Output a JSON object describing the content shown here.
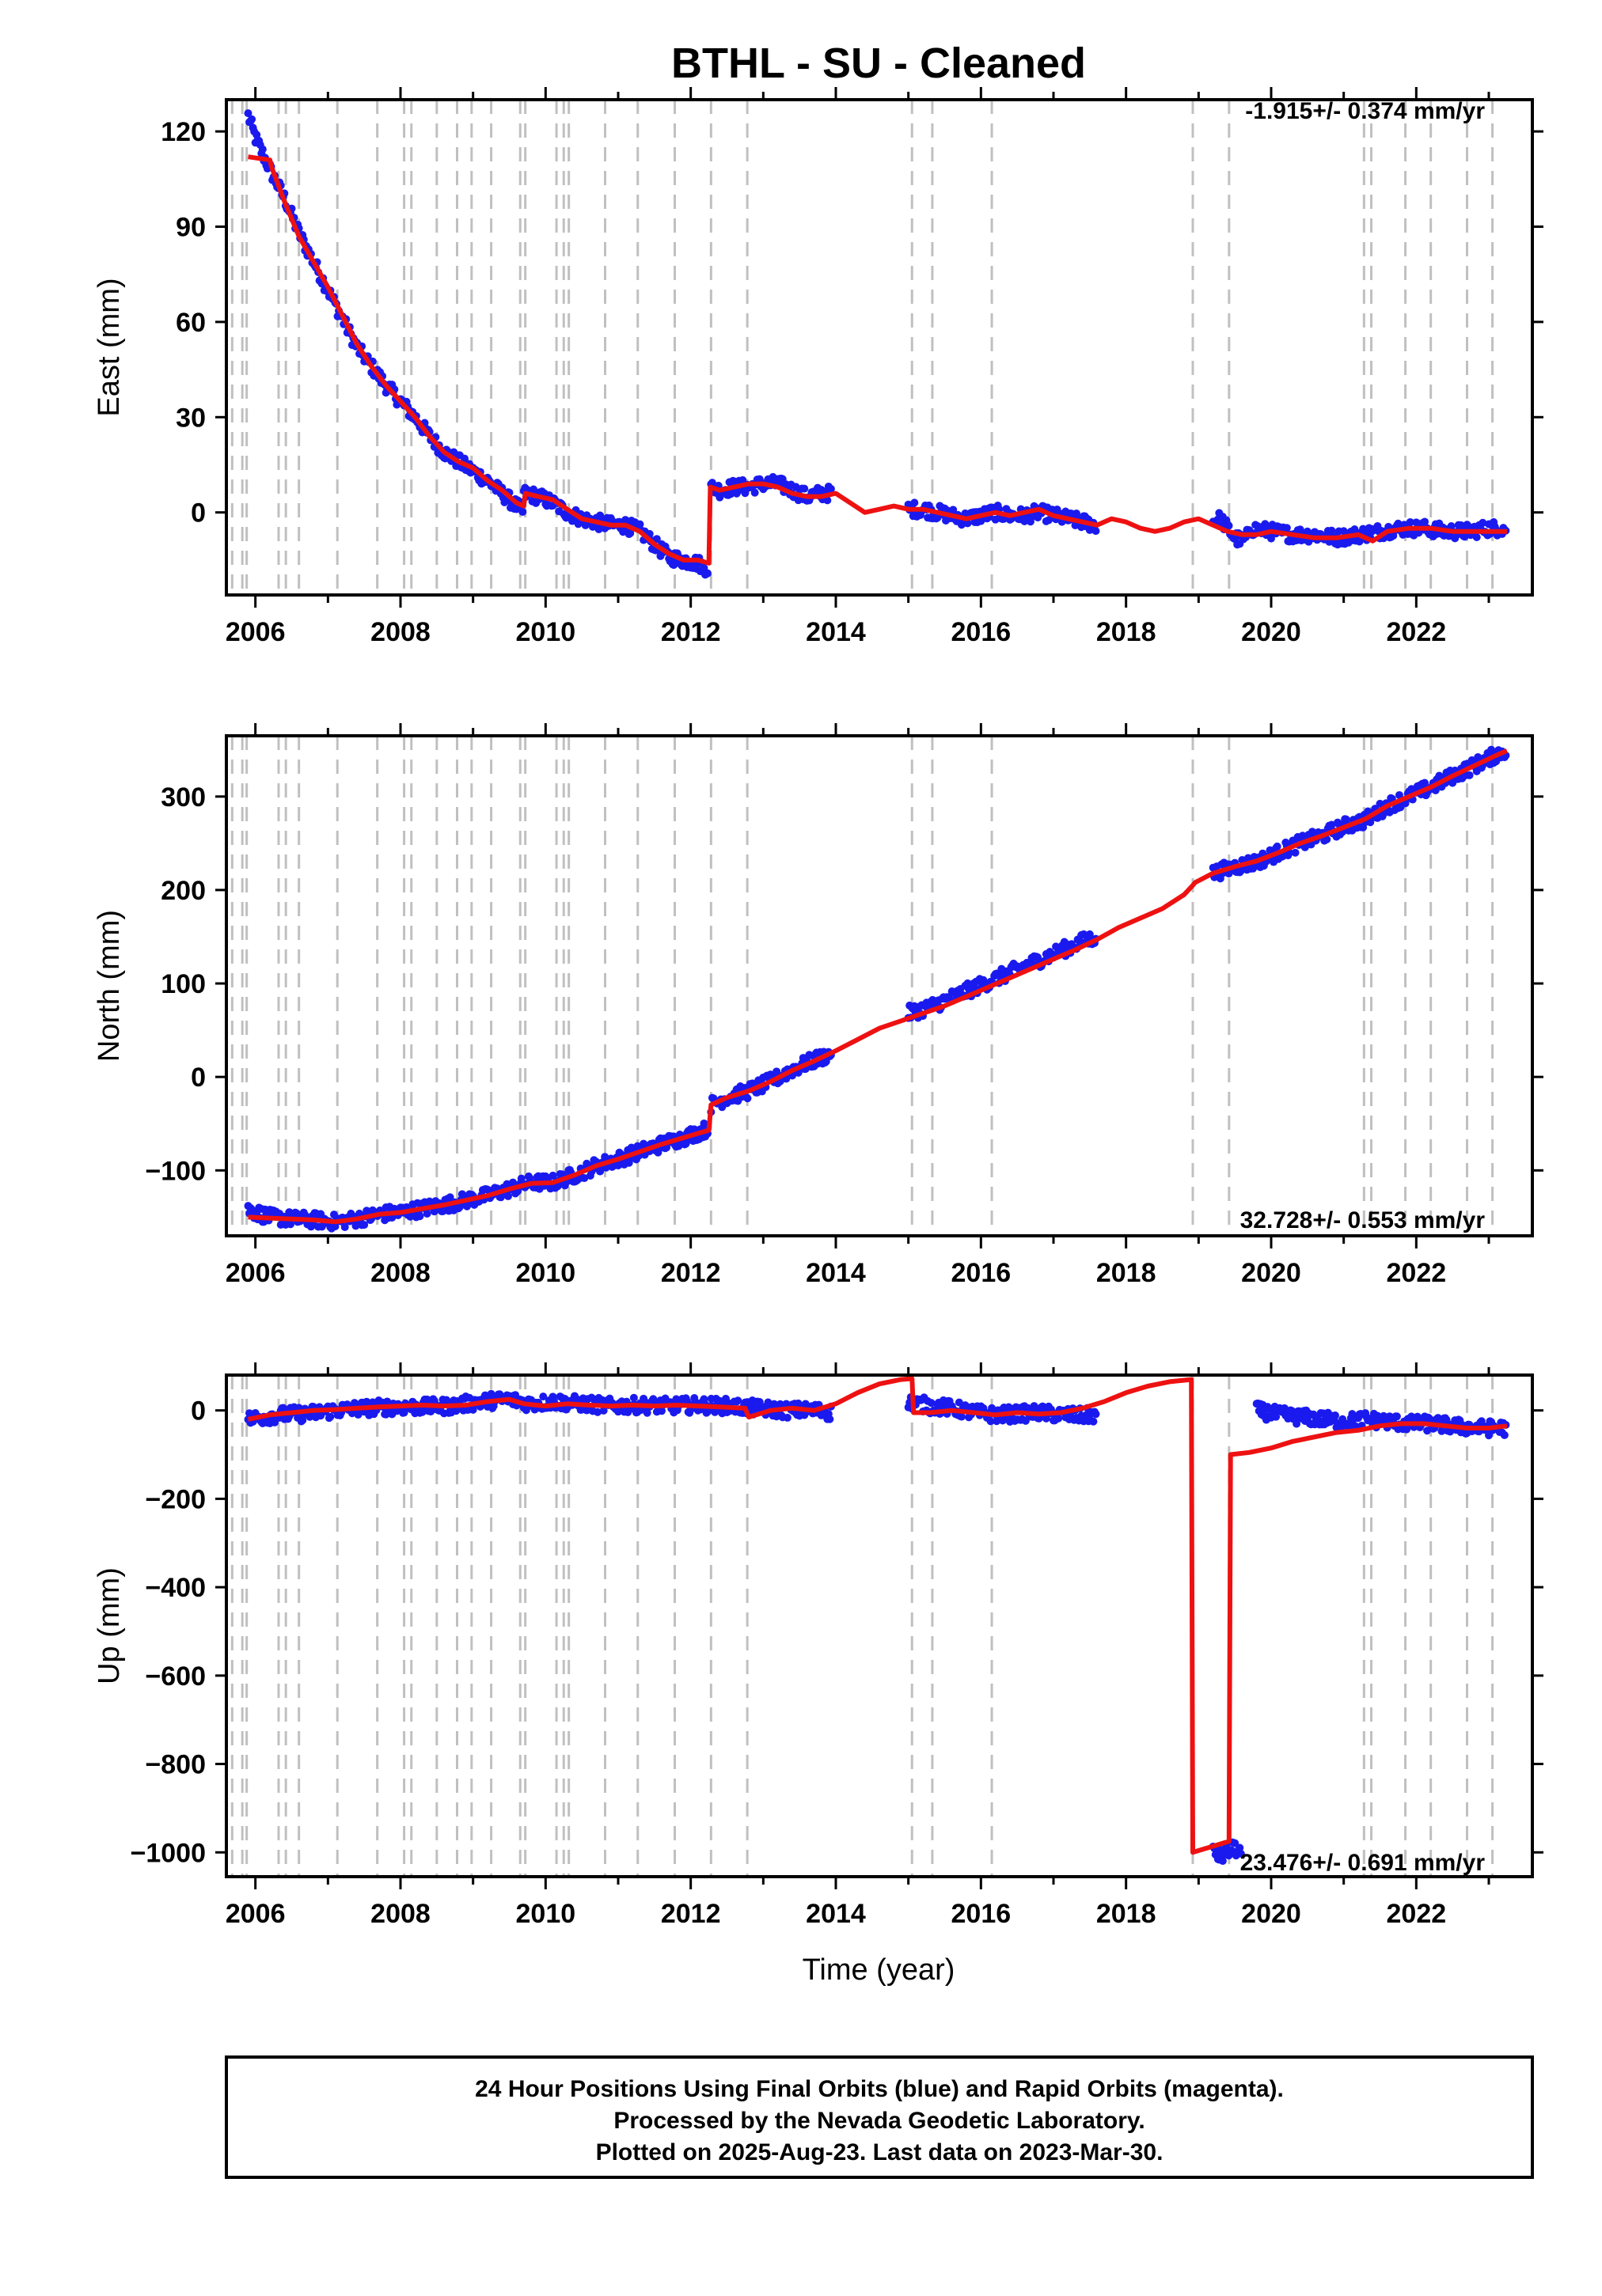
{
  "chart_data": {
    "type": "scatter",
    "title": "BTHL  - SU - Cleaned",
    "xlabel": "Time (year)",
    "xlim": [
      2005.6,
      2023.6
    ],
    "xticks": [
      2006,
      2008,
      2010,
      2012,
      2014,
      2016,
      2018,
      2020,
      2022
    ],
    "dashed_lines_x": [
      2005.68,
      2005.82,
      2005.88,
      2006.32,
      2006.42,
      2006.6,
      2007.13,
      2007.68,
      2008.05,
      2008.15,
      2008.5,
      2008.78,
      2008.98,
      2009.25,
      2009.65,
      2009.72,
      2010.15,
      2010.25,
      2010.32,
      2010.82,
      2011.27,
      2011.78,
      2012.28,
      2012.78,
      2015.05,
      2015.33,
      2016.15,
      2018.92,
      2019.42,
      2021.28,
      2021.38,
      2021.85,
      2022.2,
      2022.7,
      2023.05
    ],
    "panels": [
      {
        "ylabel": "East (mm)",
        "ylim": [
          -26,
          130
        ],
        "yticks": [
          0,
          30,
          60,
          90,
          120
        ],
        "rate_label": "-1.915+/- 0.374 mm/yr",
        "segments": [
          {
            "x": [
              2005.9,
              2006.0,
              2006.2,
              2006.4,
              2006.6,
              2006.8,
              2007.0,
              2007.2,
              2007.4,
              2007.6,
              2007.8,
              2008.0,
              2008.2,
              2008.4,
              2008.6,
              2008.8,
              2009.0,
              2009.2,
              2009.4,
              2009.6,
              2009.7
            ],
            "y": [
              125,
              118,
              108,
              99,
              88,
              79,
              70,
              61,
              52,
              46,
              40,
              35,
              30,
              24,
              19,
              16,
              13,
              10,
              6,
              2,
              0
            ]
          },
          {
            "x": [
              2009.7,
              2009.9,
              2010.1,
              2010.3,
              2010.5,
              2010.7,
              2010.9,
              2011.1,
              2011.3,
              2011.5,
              2011.7,
              2011.9,
              2012.1,
              2012.25
            ],
            "y": [
              6,
              5,
              3,
              0,
              -2,
              -3,
              -4,
              -4,
              -6,
              -10,
              -14,
              -15,
              -16,
              -18
            ]
          },
          {
            "x": [
              2012.28,
              2012.4,
              2012.6,
              2012.8,
              2013.0,
              2013.2,
              2013.4,
              2013.6,
              2013.8,
              2013.95
            ],
            "y": [
              8,
              7,
              8,
              8,
              9,
              9,
              7,
              5,
              6,
              6
            ]
          },
          {
            "x": [
              2015.0,
              2015.2,
              2015.4,
              2015.6,
              2015.8,
              2016.0,
              2016.2,
              2016.4,
              2016.6,
              2016.8,
              2017.0,
              2017.2,
              2017.4,
              2017.6
            ],
            "y": [
              1,
              1,
              0,
              -1,
              -2,
              -1,
              0,
              -1,
              -1,
              0,
              -1,
              -2,
              -3,
              -4
            ]
          },
          {
            "x": [
              2019.2,
              2019.3,
              2019.4,
              2019.5,
              2019.6,
              2019.7
            ],
            "y": [
              -3,
              -2,
              -5,
              -8,
              -9,
              -7
            ]
          },
          {
            "x": [
              2019.7,
              2020.0,
              2020.3,
              2020.6,
              2020.9,
              2021.2,
              2021.5,
              2021.8,
              2022.1,
              2022.4,
              2022.7,
              2023.0,
              2023.25
            ],
            "y": [
              -5,
              -6,
              -7,
              -7,
              -8,
              -7,
              -6,
              -5,
              -5,
              -6,
              -6,
              -5,
              -5
            ]
          }
        ],
        "fit": {
          "x": [
            2005.9,
            2006.2,
            2006.22,
            2006.4,
            2006.6,
            2006.8,
            2007.0,
            2007.2,
            2007.4,
            2007.6,
            2007.8,
            2008.0,
            2008.2,
            2008.4,
            2008.6,
            2008.8,
            2009.0,
            2009.2,
            2009.4,
            2009.6,
            2009.7,
            2009.72,
            2009.9,
            2010.1,
            2010.3,
            2010.5,
            2010.7,
            2010.9,
            2011.1,
            2011.3,
            2011.5,
            2011.7,
            2011.9,
            2012.1,
            2012.25,
            2012.27,
            2012.4,
            2012.6,
            2012.8,
            2013.0,
            2013.2,
            2013.4,
            2013.6,
            2013.8,
            2014.0,
            2014.2,
            2014.4,
            2014.6,
            2014.8,
            2015.0,
            2015.2,
            2015.4,
            2015.6,
            2015.8,
            2016.0,
            2016.2,
            2016.4,
            2016.6,
            2016.8,
            2017.0,
            2017.2,
            2017.4,
            2017.6,
            2017.8,
            2018.0,
            2018.2,
            2018.4,
            2018.6,
            2018.8,
            2019.0,
            2019.2,
            2019.4,
            2019.6,
            2019.8,
            2020.0,
            2020.3,
            2020.6,
            2020.9,
            2021.2,
            2021.4,
            2021.6,
            2021.9,
            2022.2,
            2022.5,
            2022.8,
            2023.0,
            2023.25
          ],
          "y": [
            112,
            111,
            109,
            98,
            87,
            79,
            71,
            62,
            53,
            46,
            40,
            35,
            30,
            24,
            19,
            16,
            14,
            10,
            7,
            3,
            2,
            6,
            5,
            4,
            1,
            -2,
            -3,
            -4,
            -4,
            -6,
            -10,
            -13,
            -15,
            -15,
            -16,
            8,
            7,
            8,
            9,
            9,
            8,
            6,
            5,
            5,
            6,
            3,
            0,
            1,
            2,
            1,
            1,
            0,
            -1,
            -2,
            -1,
            0,
            -1,
            0,
            1,
            -1,
            -2,
            -3,
            -4,
            -2,
            -3,
            -5,
            -6,
            -5,
            -3,
            -2,
            -4,
            -6,
            -7,
            -7,
            -6,
            -7,
            -8,
            -8,
            -7,
            -9,
            -6,
            -5,
            -5,
            -6,
            -6,
            -6,
            -6
          ]
        }
      },
      {
        "ylabel": "North (mm)",
        "ylim": [
          -170,
          365
        ],
        "yticks": [
          -100,
          0,
          100,
          200,
          300
        ],
        "rate_label": "32.728+/- 0.553 mm/yr",
        "segments": [
          {
            "x": [
              2005.9,
              2006.2,
              2006.5,
              2006.8,
              2007.1,
              2007.4,
              2007.7,
              2008.0,
              2008.3,
              2008.6,
              2008.9,
              2009.2,
              2009.5,
              2009.8,
              2010.1,
              2010.4,
              2010.7,
              2011.0,
              2011.3,
              2011.6,
              2011.9,
              2012.25
            ],
            "y": [
              -142,
              -150,
              -152,
              -153,
              -155,
              -152,
              -147,
              -145,
              -141,
              -137,
              -132,
              -127,
              -120,
              -113,
              -113,
              -105,
              -95,
              -88,
              -80,
              -72,
              -65,
              -55
            ]
          },
          {
            "x": [
              2012.28,
              2012.5,
              2012.8,
              2013.1,
              2013.4,
              2013.7,
              2013.95
            ],
            "y": [
              -30,
              -22,
              -15,
              -5,
              8,
              18,
              25
            ]
          },
          {
            "x": [
              2015.0,
              2015.3,
              2015.6,
              2015.9,
              2016.2,
              2016.5,
              2016.8,
              2017.1,
              2017.4,
              2017.6
            ],
            "y": [
              68,
              75,
              85,
              95,
              105,
              115,
              125,
              135,
              145,
              150
            ]
          },
          {
            "x": [
              2019.2,
              2019.5,
              2019.8,
              2020.1,
              2020.4,
              2020.7,
              2021.0,
              2021.3,
              2021.6,
              2021.9,
              2022.2,
              2022.5,
              2022.8,
              2023.1,
              2023.25
            ],
            "y": [
              218,
              225,
              230,
              240,
              250,
              258,
              268,
              275,
              290,
              300,
              310,
              322,
              333,
              345,
              350
            ]
          }
        ],
        "fit": {
          "x": [
            2005.9,
            2006.2,
            2006.5,
            2006.8,
            2007.1,
            2007.4,
            2007.7,
            2008.0,
            2008.3,
            2008.6,
            2008.9,
            2009.2,
            2009.5,
            2009.8,
            2010.1,
            2010.4,
            2010.7,
            2011.0,
            2011.3,
            2011.6,
            2011.9,
            2012.25,
            2012.28,
            2012.5,
            2012.8,
            2013.1,
            2013.4,
            2013.7,
            2014.0,
            2014.3,
            2014.6,
            2014.9,
            2015.2,
            2015.5,
            2015.8,
            2016.1,
            2016.4,
            2016.7,
            2017.0,
            2017.3,
            2017.6,
            2017.9,
            2018.2,
            2018.5,
            2018.8,
            2018.92,
            2018.95,
            2019.2,
            2019.5,
            2019.8,
            2020.1,
            2020.4,
            2020.7,
            2021.0,
            2021.3,
            2021.6,
            2021.9,
            2022.2,
            2022.5,
            2022.8,
            2023.1,
            2023.25
          ],
          "y": [
            -150,
            -151,
            -152,
            -153,
            -155,
            -152,
            -147,
            -145,
            -141,
            -137,
            -132,
            -127,
            -120,
            -114,
            -113,
            -105,
            -95,
            -88,
            -80,
            -72,
            -65,
            -57,
            -30,
            -22,
            -15,
            -5,
            7,
            17,
            28,
            40,
            52,
            60,
            68,
            76,
            86,
            96,
            106,
            116,
            126,
            136,
            147,
            160,
            170,
            180,
            195,
            205,
            208,
            218,
            225,
            231,
            240,
            250,
            258,
            267,
            276,
            290,
            300,
            310,
            322,
            333,
            344,
            349
          ]
        }
      },
      {
        "ylabel": "Up (mm)",
        "ylim": [
          -1055,
          80
        ],
        "yticks": [
          -1000,
          -800,
          -600,
          -400,
          -200,
          0
        ],
        "rate_label": "23.476+/- 0.691 mm/yr",
        "segments": [
          {
            "x": [
              2005.9,
              2006.3,
              2006.7,
              2007.1,
              2007.5,
              2007.9,
              2008.3,
              2008.7,
              2009.1,
              2009.5,
              2009.8,
              2010.1,
              2010.5,
              2010.9,
              2011.3,
              2011.7,
              2012.1,
              2012.5,
              2012.9,
              2013.3,
              2013.7,
              2013.95
            ],
            "y": [
              -20,
              -10,
              -8,
              0,
              5,
              8,
              8,
              10,
              20,
              25,
              15,
              20,
              15,
              10,
              12,
              10,
              12,
              10,
              5,
              0,
              0,
              -5
            ]
          },
          {
            "x": [
              2015.0,
              2015.3,
              2015.6,
              2015.9,
              2016.2,
              2016.5,
              2016.8,
              2017.1,
              2017.4,
              2017.6
            ],
            "y": [
              20,
              10,
              5,
              -5,
              -10,
              -8,
              -5,
              -10,
              -12,
              -10
            ]
          },
          {
            "x": [
              2019.2,
              2019.3,
              2019.4,
              2019.5,
              2019.6
            ],
            "y": [
              -1000,
              -1010,
              -1000,
              -990,
              -1005
            ]
          },
          {
            "x": [
              2019.8,
              2020.1,
              2020.4,
              2020.7,
              2021.0,
              2021.3,
              2021.6,
              2021.9,
              2022.2,
              2022.5,
              2022.8,
              2023.1,
              2023.25
            ],
            "y": [
              0,
              -10,
              -15,
              -20,
              -25,
              -20,
              -25,
              -30,
              -30,
              -35,
              -40,
              -40,
              -40
            ]
          }
        ],
        "fit": {
          "x": [
            2005.9,
            2006.2,
            2006.5,
            2006.8,
            2007.1,
            2007.4,
            2007.7,
            2008.0,
            2008.3,
            2008.6,
            2008.9,
            2009.2,
            2009.5,
            2009.7,
            2010.0,
            2010.3,
            2010.6,
            2010.9,
            2011.2,
            2011.5,
            2011.8,
            2012.1,
            2012.4,
            2012.75,
            2012.8,
            2013.1,
            2013.4,
            2013.7,
            2014.0,
            2014.3,
            2014.6,
            2014.9,
            2015.05,
            2015.07,
            2015.3,
            2015.6,
            2015.9,
            2016.2,
            2016.5,
            2016.8,
            2017.1,
            2017.4,
            2017.7,
            2018.0,
            2018.3,
            2018.6,
            2018.9,
            2018.92,
            2019.42,
            2019.44,
            2019.7,
            2020.0,
            2020.3,
            2020.6,
            2020.9,
            2021.2,
            2021.5,
            2021.8,
            2022.1,
            2022.4,
            2022.7,
            2023.0,
            2023.25
          ],
          "y": [
            -20,
            -10,
            -5,
            0,
            2,
            5,
            8,
            10,
            12,
            10,
            12,
            20,
            25,
            15,
            10,
            15,
            12,
            10,
            12,
            10,
            12,
            10,
            8,
            5,
            -15,
            0,
            5,
            0,
            15,
            40,
            60,
            70,
            72,
            -5,
            -5,
            0,
            -5,
            -10,
            -5,
            -8,
            -5,
            5,
            20,
            40,
            55,
            65,
            70,
            -1000,
            -975,
            -100,
            -95,
            -85,
            -70,
            -60,
            -50,
            -45,
            -35,
            -30,
            -30,
            -35,
            -40,
            -40,
            -35
          ]
        }
      }
    ],
    "footer_lines": [
      "24 Hour Positions Using Final Orbits (blue) and Rapid Orbits (magenta).",
      "Processed by the Nevada Geodetic Laboratory.",
      "Plotted on 2025-Aug-23. Last data on 2023-Mar-30."
    ],
    "colors": {
      "data": "#1a1aee",
      "fit": "#ee1111",
      "dashed": "#c0c0c0",
      "axis": "#000000"
    }
  }
}
